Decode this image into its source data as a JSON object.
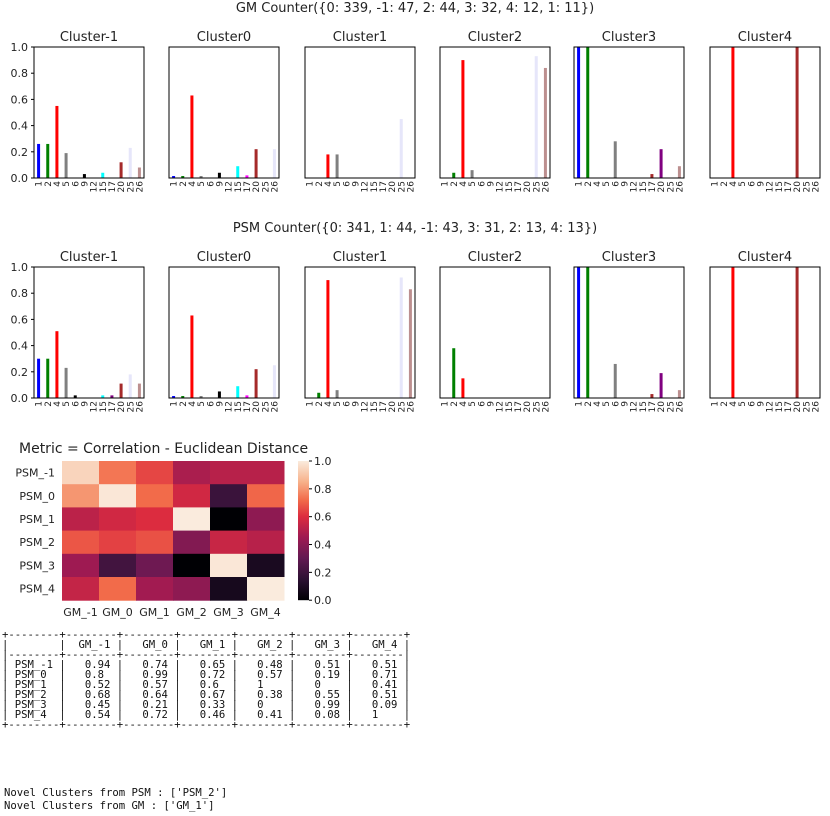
{
  "chart_data": [
    {
      "type": "bar",
      "title": "GM Counter({0: 339, -1: 47, 2: 44, 3: 32, 4: 12, 1: 11})",
      "x_ticks": [
        "1",
        "2",
        "4",
        "5",
        "6",
        "9",
        "12",
        "15",
        "17",
        "20",
        "25",
        "26"
      ],
      "ylim": [
        0,
        1.0
      ],
      "y_ticks": [
        "0.0",
        "0.2",
        "0.4",
        "0.6",
        "0.8",
        "1.0"
      ],
      "panels": [
        {
          "name": "Cluster-1",
          "bars": [
            {
              "x": "1",
              "value": 0.26,
              "color": "#0000ff"
            },
            {
              "x": "2",
              "value": 0.26,
              "color": "#008000"
            },
            {
              "x": "4",
              "value": 0.55,
              "color": "#ff0000"
            },
            {
              "x": "5",
              "value": 0.19,
              "color": "#808080"
            },
            {
              "x": "9",
              "value": 0.03,
              "color": "#000000"
            },
            {
              "x": "15",
              "value": 0.04,
              "color": "#00ffff"
            },
            {
              "x": "20",
              "value": 0.12,
              "color": "#a52a2a"
            },
            {
              "x": "25",
              "value": 0.23,
              "color": "#e6e6fa"
            },
            {
              "x": "26",
              "value": 0.08,
              "color": "#bc8f8f"
            }
          ]
        },
        {
          "name": "Cluster0",
          "bars": [
            {
              "x": "1",
              "value": 0.015,
              "color": "#0000ff"
            },
            {
              "x": "2",
              "value": 0.015,
              "color": "#008000"
            },
            {
              "x": "4",
              "value": 0.63,
              "color": "#ff0000"
            },
            {
              "x": "5",
              "value": 0.015,
              "color": "#808080"
            },
            {
              "x": "9",
              "value": 0.04,
              "color": "#000000"
            },
            {
              "x": "15",
              "value": 0.09,
              "color": "#00ffff"
            },
            {
              "x": "17",
              "value": 0.02,
              "color": "#ff00ff"
            },
            {
              "x": "20",
              "value": 0.22,
              "color": "#a52a2a"
            },
            {
              "x": "26",
              "value": 0.22,
              "color": "#e6e6fa"
            }
          ]
        },
        {
          "name": "Cluster1",
          "bars": [
            {
              "x": "4",
              "value": 0.18,
              "color": "#ff0000"
            },
            {
              "x": "5",
              "value": 0.18,
              "color": "#808080"
            },
            {
              "x": "25",
              "value": 0.45,
              "color": "#e6e6fa"
            }
          ]
        },
        {
          "name": "Cluster2",
          "bars": [
            {
              "x": "2",
              "value": 0.04,
              "color": "#008000"
            },
            {
              "x": "4",
              "value": 0.9,
              "color": "#ff0000"
            },
            {
              "x": "5",
              "value": 0.06,
              "color": "#808080"
            },
            {
              "x": "25",
              "value": 0.93,
              "color": "#e6e6fa"
            },
            {
              "x": "26",
              "value": 0.84,
              "color": "#bc8f8f"
            }
          ]
        },
        {
          "name": "Cluster3",
          "bars": [
            {
              "x": "1",
              "value": 1.0,
              "color": "#0000ff"
            },
            {
              "x": "2",
              "value": 1.0,
              "color": "#008000"
            },
            {
              "x": "6",
              "value": 0.28,
              "color": "#808080"
            },
            {
              "x": "17",
              "value": 0.03,
              "color": "#a52a2a"
            },
            {
              "x": "20",
              "value": 0.22,
              "color": "#800080"
            },
            {
              "x": "26",
              "value": 0.09,
              "color": "#bc8f8f"
            }
          ]
        },
        {
          "name": "Cluster4",
          "bars": [
            {
              "x": "4",
              "value": 1.0,
              "color": "#ff0000"
            },
            {
              "x": "20",
              "value": 1.0,
              "color": "#a52a2a"
            }
          ]
        }
      ]
    },
    {
      "type": "bar",
      "title": "PSM Counter({0: 341, 1: 44, -1: 43, 3: 31, 2: 13, 4: 13})",
      "x_ticks": [
        "1",
        "2",
        "4",
        "5",
        "6",
        "9",
        "12",
        "15",
        "17",
        "20",
        "25",
        "26"
      ],
      "ylim": [
        0,
        1.0
      ],
      "y_ticks": [
        "0.0",
        "0.2",
        "0.4",
        "0.6",
        "0.8",
        "1.0"
      ],
      "panels": [
        {
          "name": "Cluster-1",
          "bars": [
            {
              "x": "1",
              "value": 0.3,
              "color": "#0000ff"
            },
            {
              "x": "2",
              "value": 0.3,
              "color": "#008000"
            },
            {
              "x": "4",
              "value": 0.51,
              "color": "#ff0000"
            },
            {
              "x": "5",
              "value": 0.23,
              "color": "#808080"
            },
            {
              "x": "6",
              "value": 0.02,
              "color": "#000000"
            },
            {
              "x": "15",
              "value": 0.02,
              "color": "#00ffff"
            },
            {
              "x": "20",
              "value": 0.11,
              "color": "#a52a2a"
            },
            {
              "x": "17",
              "value": 0.02,
              "color": "#800080"
            },
            {
              "x": "25",
              "value": 0.18,
              "color": "#e6e6fa"
            },
            {
              "x": "26",
              "value": 0.11,
              "color": "#bc8f8f"
            }
          ]
        },
        {
          "name": "Cluster0",
          "bars": [
            {
              "x": "1",
              "value": 0.015,
              "color": "#0000ff"
            },
            {
              "x": "2",
              "value": 0.015,
              "color": "#008000"
            },
            {
              "x": "4",
              "value": 0.63,
              "color": "#ff0000"
            },
            {
              "x": "5",
              "value": 0.015,
              "color": "#808080"
            },
            {
              "x": "9",
              "value": 0.05,
              "color": "#000000"
            },
            {
              "x": "15",
              "value": 0.09,
              "color": "#00ffff"
            },
            {
              "x": "17",
              "value": 0.02,
              "color": "#ff00ff"
            },
            {
              "x": "20",
              "value": 0.22,
              "color": "#a52a2a"
            },
            {
              "x": "26",
              "value": 0.25,
              "color": "#e6e6fa"
            }
          ]
        },
        {
          "name": "Cluster1",
          "bars": [
            {
              "x": "2",
              "value": 0.04,
              "color": "#008000"
            },
            {
              "x": "4",
              "value": 0.9,
              "color": "#ff0000"
            },
            {
              "x": "5",
              "value": 0.06,
              "color": "#808080"
            },
            {
              "x": "25",
              "value": 0.92,
              "color": "#e6e6fa"
            },
            {
              "x": "26",
              "value": 0.83,
              "color": "#bc8f8f"
            }
          ]
        },
        {
          "name": "Cluster2",
          "bars": [
            {
              "x": "2",
              "value": 0.38,
              "color": "#008000"
            },
            {
              "x": "4",
              "value": 0.15,
              "color": "#ff0000"
            }
          ]
        },
        {
          "name": "Cluster3",
          "bars": [
            {
              "x": "1",
              "value": 1.0,
              "color": "#0000ff"
            },
            {
              "x": "2",
              "value": 1.0,
              "color": "#008000"
            },
            {
              "x": "6",
              "value": 0.26,
              "color": "#808080"
            },
            {
              "x": "17",
              "value": 0.03,
              "color": "#a52a2a"
            },
            {
              "x": "20",
              "value": 0.19,
              "color": "#800080"
            },
            {
              "x": "26",
              "value": 0.06,
              "color": "#bc8f8f"
            }
          ]
        },
        {
          "name": "Cluster4",
          "bars": [
            {
              "x": "4",
              "value": 1.0,
              "color": "#ff0000"
            },
            {
              "x": "20",
              "value": 1.0,
              "color": "#a52a2a"
            }
          ]
        }
      ]
    },
    {
      "type": "heatmap",
      "title": "Metric = Correlation - Euclidean Distance",
      "rows": [
        "PSM_-1",
        "PSM_0",
        "PSM_1",
        "PSM_2",
        "PSM_3",
        "PSM_4"
      ],
      "cols": [
        "GM_-1",
        "GM_0",
        "GM_1",
        "GM_2",
        "GM_3",
        "GM_4"
      ],
      "values": [
        [
          0.94,
          0.74,
          0.65,
          0.48,
          0.51,
          0.51
        ],
        [
          0.8,
          0.99,
          0.72,
          0.57,
          0.19,
          0.71
        ],
        [
          0.52,
          0.57,
          0.6,
          1,
          0,
          0.41
        ],
        [
          0.68,
          0.64,
          0.67,
          0.38,
          0.55,
          0.51
        ],
        [
          0.45,
          0.21,
          0.33,
          0,
          0.99,
          0.09
        ],
        [
          0.54,
          0.72,
          0.46,
          0.41,
          0.08,
          1
        ]
      ],
      "colorbar_ticks": [
        "0.0",
        "0.2",
        "0.4",
        "0.6",
        "0.8",
        "1.0"
      ],
      "vmin": 0,
      "vmax": 1
    }
  ],
  "ascii_table": "+--------+--------+--------+--------+--------+--------+--------+\n|        |  GM_-1 |   GM_0 |   GM_1 |   GM_2 |   GM_3 |   GM_4 |\n|--------+--------+--------+--------+--------+--------+--------|\n| PSM_-1 |   0.94 |   0.74 |   0.65 |   0.48 |   0.51 |   0.51 |\n| PSM_0  |   0.8  |   0.99 |   0.72 |   0.57 |   0.19 |   0.71 |\n| PSM_1  |   0.52 |   0.57 |   0.6  |   1    |   0    |   0.41 |\n| PSM_2  |   0.68 |   0.64 |   0.67 |   0.38 |   0.55 |   0.51 |\n| PSM_3  |   0.45 |   0.21 |   0.33 |   0    |   0.99 |   0.09 |\n| PSM_4  |   0.54 |   0.72 |   0.46 |   0.41 |   0.08 |   1    |\n+--------+--------+--------+--------+--------+--------+--------+",
  "novel": {
    "psm": "Novel Clusters from PSM : ['PSM_2']",
    "gm": "Novel Clusters from GM : ['GM_1']"
  }
}
